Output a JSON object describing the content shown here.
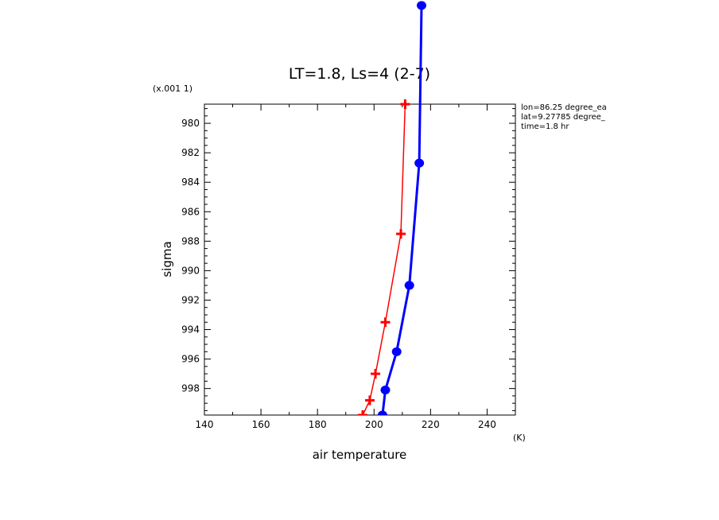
{
  "chart_data": {
    "type": "line",
    "title": "LT=1.8, Ls=4 (2-7)",
    "xlabel": "air temperature",
    "x_unit": "(K)",
    "ylabel": "sigma",
    "y_scale_note": "(x.001 1)",
    "xlim": [
      140,
      250
    ],
    "ylim": [
      999.8,
      978.7
    ],
    "y_inverted": true,
    "x_ticks": [
      140,
      160,
      180,
      200,
      220,
      240
    ],
    "y_ticks": [
      980,
      982,
      984,
      986,
      988,
      990,
      992,
      994,
      996,
      998
    ],
    "grid": false,
    "info_lines": [
      "lon=86.25 degree_ea",
      "lat=9.27785 degree_",
      "time=1.8 hr"
    ],
    "series": [
      {
        "color": "#ff0000",
        "marker": "plus",
        "points": [
          {
            "x": 211.0,
            "y": 978.7
          },
          {
            "x": 209.5,
            "y": 987.5
          },
          {
            "x": 204.0,
            "y": 993.5
          },
          {
            "x": 200.5,
            "y": 997.0
          },
          {
            "x": 198.5,
            "y": 998.8
          },
          {
            "x": 196.0,
            "y": 999.8
          }
        ]
      },
      {
        "color": "#0000ff",
        "marker": "circle",
        "points": [
          {
            "x": 216.8,
            "y": 972.0
          },
          {
            "x": 216.0,
            "y": 982.7
          },
          {
            "x": 212.5,
            "y": 991.0
          },
          {
            "x": 208.0,
            "y": 995.5
          },
          {
            "x": 204.0,
            "y": 998.1
          },
          {
            "x": 203.0,
            "y": 999.8
          }
        ]
      }
    ]
  }
}
